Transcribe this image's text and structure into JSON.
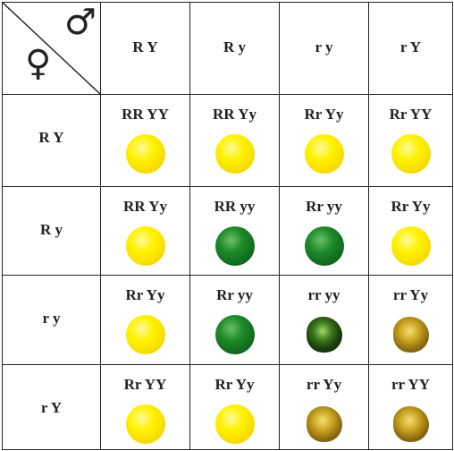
{
  "table": {
    "female_symbol": "♀",
    "male_symbol": "♂",
    "columns": [
      "R Y",
      "R y",
      "r y",
      "r Y"
    ],
    "rows": [
      {
        "label": "R Y",
        "cells": [
          "RR YY",
          "RR Yy",
          "Rr Yy",
          "Rr YY"
        ]
      },
      {
        "label": "R y",
        "cells": [
          "RR Yy",
          "RR yy",
          "Rr yy",
          "Rr Yy"
        ]
      },
      {
        "label": "r y",
        "cells": [
          "Rr Yy",
          "Rr yy",
          "rr yy",
          "rr Yy"
        ]
      },
      {
        "label": "r Y",
        "cells": [
          "Rr YY",
          "Rr Yy",
          "rr Yy",
          "rr YY"
        ]
      }
    ]
  }
}
